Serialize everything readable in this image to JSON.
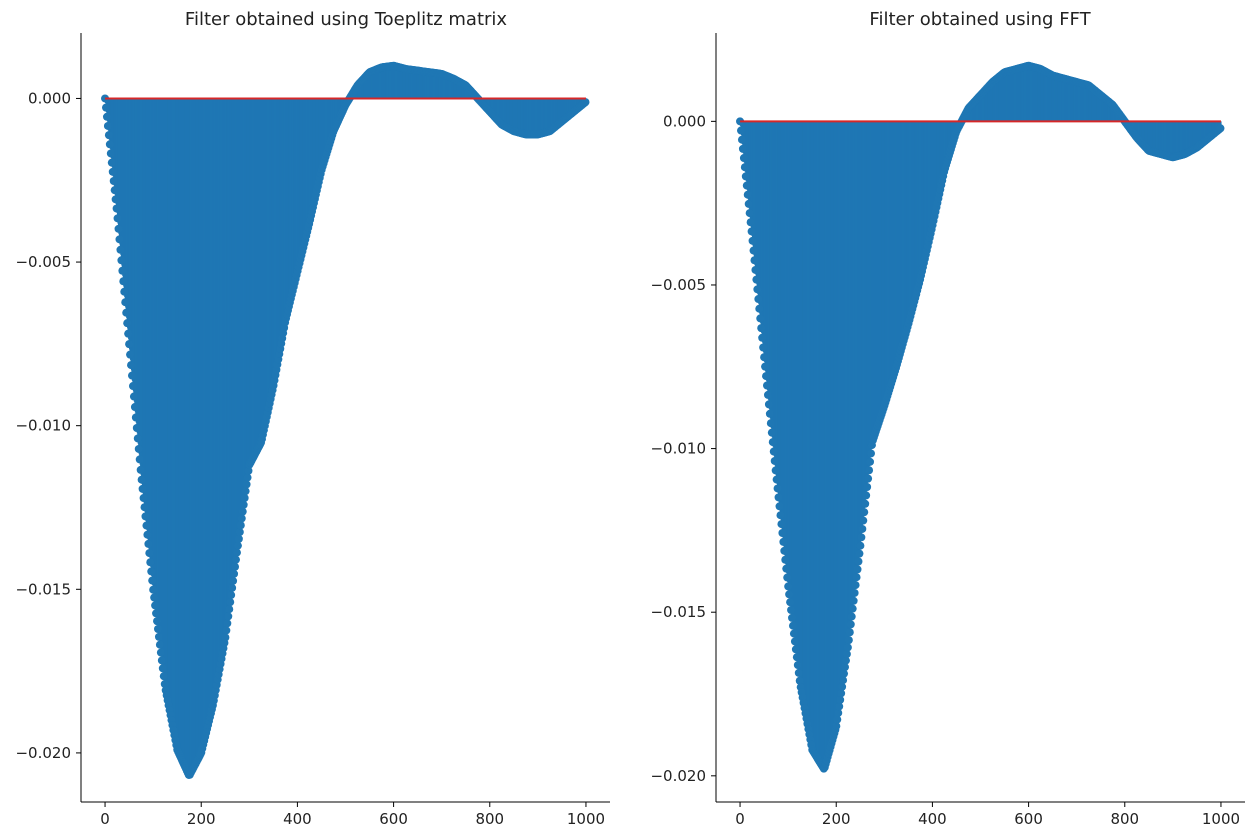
{
  "chart_data": [
    {
      "type": "stem",
      "title": "Filter obtained using Toeplitz matrix",
      "xlabel": "",
      "ylabel": "",
      "xlim": [
        -50,
        1050
      ],
      "ylim": [
        -0.0215,
        0.002
      ],
      "xticks": [
        0,
        200,
        400,
        600,
        800,
        1000
      ],
      "xtick_labels": [
        "0",
        "200",
        "400",
        "600",
        "800",
        "1000"
      ],
      "yticks": [
        0.0,
        -0.005,
        -0.01,
        -0.015,
        -0.02
      ],
      "ytick_labels": [
        "0.000",
        "−0.005",
        "−0.010",
        "−0.015",
        "−0.020"
      ],
      "n_points": 1000,
      "stem_color": "#1f77b4",
      "baseline_color": "#d62728",
      "grid": false,
      "envelope": {
        "x": [
          0,
          25,
          50,
          75,
          100,
          125,
          150,
          175,
          200,
          225,
          250,
          275,
          300,
          325,
          350,
          375,
          400,
          425,
          450,
          475,
          500,
          525,
          550,
          575,
          600,
          625,
          650,
          675,
          700,
          725,
          750,
          775,
          800,
          825,
          850,
          875,
          900,
          925,
          950,
          975,
          1000
        ],
        "y": [
          0.0,
          -0.0035,
          -0.0075,
          -0.0115,
          -0.015,
          -0.018,
          -0.0199,
          -0.0207,
          -0.02,
          -0.0185,
          -0.0165,
          -0.0138,
          -0.0112,
          -0.0105,
          -0.0088,
          -0.0068,
          -0.0053,
          -0.0038,
          -0.0022,
          -0.001,
          -0.0002,
          0.0004,
          0.0008,
          0.00095,
          0.001,
          0.0009,
          0.00085,
          0.0008,
          0.00075,
          0.0006,
          0.0004,
          0.0,
          -0.0004,
          -0.0008,
          -0.001,
          -0.0011,
          -0.0011,
          -0.001,
          -0.0007,
          -0.0004,
          -0.0001
        ]
      }
    },
    {
      "type": "stem",
      "title": "Filter obtained using FFT",
      "xlabel": "",
      "ylabel": "",
      "xlim": [
        -50,
        1050
      ],
      "ylim": [
        -0.0208,
        0.0027
      ],
      "xticks": [
        0,
        200,
        400,
        600,
        800,
        1000
      ],
      "xtick_labels": [
        "0",
        "200",
        "400",
        "600",
        "800",
        "1000"
      ],
      "yticks": [
        0.0,
        -0.005,
        -0.01,
        -0.015,
        -0.02
      ],
      "ytick_labels": [
        "0.000",
        "−0.005",
        "−0.010",
        "−0.015",
        "−0.020"
      ],
      "n_points": 1000,
      "stem_color": "#1f77b4",
      "baseline_color": "#d62728",
      "grid": false,
      "envelope": {
        "x": [
          0,
          25,
          50,
          75,
          100,
          125,
          150,
          175,
          200,
          225,
          250,
          275,
          300,
          325,
          350,
          375,
          400,
          425,
          450,
          475,
          500,
          525,
          550,
          575,
          600,
          625,
          650,
          675,
          700,
          725,
          750,
          775,
          800,
          825,
          850,
          875,
          900,
          925,
          950,
          975,
          1000
        ],
        "y": [
          0.0,
          -0.0035,
          -0.0072,
          -0.0108,
          -0.0142,
          -0.0172,
          -0.0192,
          -0.0198,
          -0.0185,
          -0.016,
          -0.013,
          -0.0098,
          -0.0087,
          -0.0075,
          -0.0062,
          -0.0048,
          -0.0032,
          -0.0015,
          -0.0003,
          0.0004,
          0.0008,
          0.0012,
          0.0015,
          0.0016,
          0.0017,
          0.0016,
          0.0014,
          0.0013,
          0.0012,
          0.0011,
          0.0008,
          0.0005,
          0.0,
          -0.0005,
          -0.0009,
          -0.001,
          -0.0011,
          -0.001,
          -0.0008,
          -0.0005,
          -0.0002
        ]
      }
    }
  ]
}
